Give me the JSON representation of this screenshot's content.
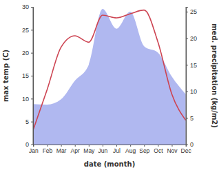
{
  "chart_data": {
    "type": "line",
    "x_label": "date (month)",
    "y_label": "max temp (C)",
    "y2_label": "med. precipitation (kg/m2)",
    "categories": [
      "Jan",
      "Feb",
      "Mar",
      "Apr",
      "May",
      "Jun",
      "Jul",
      "Aug",
      "Sep",
      "Oct",
      "Nov",
      "Dec"
    ],
    "series": [
      {
        "name": "med. precipitation",
        "type": "area",
        "axis": "y2",
        "color": "#b0b8f0",
        "values": [
          7.6,
          7.5,
          8.5,
          12,
          15,
          25.5,
          21.8,
          25,
          18.5,
          17.3,
          12.8,
          9.5
        ]
      },
      {
        "name": "max temp",
        "type": "line",
        "color": "#cd4452",
        "values": [
          3.3,
          12,
          21.2,
          23.7,
          22.3,
          28.2,
          27.6,
          28.5,
          29.3,
          22.3,
          11,
          5.3
        ]
      }
    ],
    "ylim": [
      0,
      30
    ],
    "yticks": [
      0,
      5,
      10,
      15,
      20,
      25,
      30
    ],
    "y2lim": [
      0,
      25.9
    ],
    "y2ticks": [
      0,
      5,
      10,
      15,
      20,
      25
    ],
    "grid": false
  }
}
